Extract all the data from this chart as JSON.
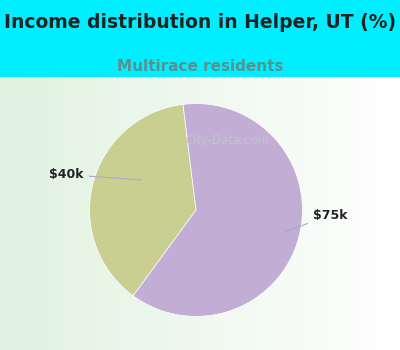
{
  "title": "Income distribution in Helper, UT (%)",
  "subtitle": "Multirace residents",
  "slices": [
    0.38,
    0.62
  ],
  "labels": [
    "$40k",
    "$75k"
  ],
  "colors": [
    "#c8cf90",
    "#c2aed4"
  ],
  "title_fontsize": 13.5,
  "subtitle_fontsize": 11,
  "title_color": "#222222",
  "subtitle_color": "#5a9090",
  "bg_color_cyan": "#00eeff",
  "bg_color_chart": "#ffffff",
  "watermark": "City-Data.com",
  "start_angle": 97,
  "label_fontsize": 9,
  "annotation_color": "#aaaacc"
}
